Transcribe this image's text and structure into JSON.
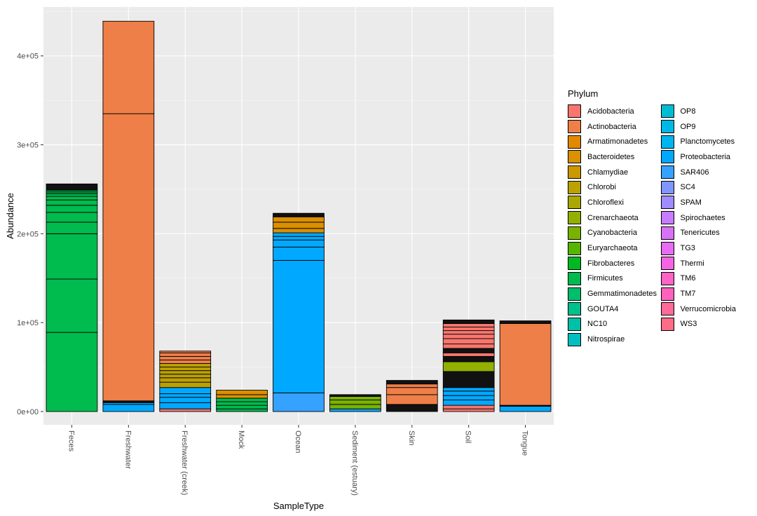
{
  "chart_data": {
    "type": "bar",
    "stacked": true,
    "title": "",
    "xlabel": "SampleType",
    "ylabel": "Abundance",
    "ylim": [
      -15000,
      455000
    ],
    "y_ticks": [
      0,
      100000,
      200000,
      300000,
      400000
    ],
    "y_tick_labels": [
      "0e+00",
      "1e+05",
      "2e+05",
      "3e+05",
      "4e+05"
    ],
    "categories": [
      "Feces",
      "Freshwater",
      "Freshwater (creek)",
      "Mock",
      "Ocean",
      "Sediment (estuary)",
      "Skin",
      "Soil",
      "Tongue"
    ],
    "legend_title": "Phylum",
    "legend_position": "right",
    "phyla": [
      {
        "name": "Acidobacteria",
        "color": "#F8766D"
      },
      {
        "name": "Actinobacteria",
        "color": "#EF7F48"
      },
      {
        "name": "Armatimonadetes",
        "color": "#E38900"
      },
      {
        "name": "Bacteroidetes",
        "color": "#DA9000"
      },
      {
        "name": "Chlamydiae",
        "color": "#CC9800"
      },
      {
        "name": "Chlorobi",
        "color": "#BCA000"
      },
      {
        "name": "Chloroflexi",
        "color": "#AAA800"
      },
      {
        "name": "Crenarchaeota",
        "color": "#93AF00"
      },
      {
        "name": "Cyanobacteria",
        "color": "#7AB200"
      },
      {
        "name": "Euryarchaeota",
        "color": "#56B500"
      },
      {
        "name": "Fibrobacteres",
        "color": "#00B81F"
      },
      {
        "name": "Firmicutes",
        "color": "#00BB4E"
      },
      {
        "name": "Gemmatimonadetes",
        "color": "#00BE6C"
      },
      {
        "name": "GOUTA4",
        "color": "#00C08B"
      },
      {
        "name": "NC10",
        "color": "#00C0A7"
      },
      {
        "name": "Nitrospirae",
        "color": "#00BFC0"
      },
      {
        "name": "OP8",
        "color": "#00BCD3"
      },
      {
        "name": "OP9",
        "color": "#00B8E5"
      },
      {
        "name": "Planctomycetes",
        "color": "#00B4F0"
      },
      {
        "name": "Proteobacteria",
        "color": "#00A9FF"
      },
      {
        "name": "SAR406",
        "color": "#35A2FF"
      },
      {
        "name": "SC4",
        "color": "#7F96FF"
      },
      {
        "name": "SPAM",
        "color": "#9F8CFF"
      },
      {
        "name": "Spirochaetes",
        "color": "#C77CFF"
      },
      {
        "name": "Tenericutes",
        "color": "#D872F5"
      },
      {
        "name": "TG3",
        "color": "#E76BF3"
      },
      {
        "name": "Thermi",
        "color": "#F564E3"
      },
      {
        "name": "TM6",
        "color": "#FF63C6"
      },
      {
        "name": "TM7",
        "color": "#FF62BC"
      },
      {
        "name": "Verrucomicrobia",
        "color": "#FF6A98"
      },
      {
        "name": "WS3",
        "color": "#FF6C86"
      }
    ],
    "series": [
      {
        "category": "Feces",
        "total": 256000,
        "segments": [
          {
            "phylum": "Firmicutes",
            "boundaries": [
              0,
              89000,
              149000,
              200000,
              213000,
              224000,
              232000,
              238000,
              242000,
              245000,
              247000,
              249000
            ]
          },
          {
            "phylum": "Other (dark)",
            "boundaries": [
              249000,
              256000
            ]
          }
        ]
      },
      {
        "category": "Freshwater",
        "total": 439000,
        "segments": [
          {
            "phylum": "Proteobacteria",
            "boundaries": [
              0,
              8000,
              10000
            ]
          },
          {
            "phylum": "Other (dark)",
            "boundaries": [
              10000,
              12000
            ]
          },
          {
            "phylum": "Actinobacteria",
            "boundaries": [
              12000,
              335000,
              439000
            ]
          }
        ]
      },
      {
        "category": "Freshwater (creek)",
        "total": 68000,
        "segments": [
          {
            "phylum": "Acidobacteria",
            "boundaries": [
              0,
              3000
            ]
          },
          {
            "phylum": "Proteobacteria",
            "boundaries": [
              3000,
              10000,
              16000,
              20000,
              27000
            ]
          },
          {
            "phylum": "Chlorobi",
            "boundaries": [
              27000,
              33000,
              38000,
              42000,
              46000,
              50000,
              54000
            ]
          },
          {
            "phylum": "Actinobacteria",
            "boundaries": [
              54000,
              58000,
              62000,
              66000,
              68000
            ]
          }
        ]
      },
      {
        "category": "Mock",
        "total": 24000,
        "segments": [
          {
            "phylum": "Firmicutes",
            "boundaries": [
              0,
              3000,
              7000,
              11000,
              15000
            ]
          },
          {
            "phylum": "Bacteroidetes",
            "boundaries": [
              15000,
              19000,
              24000
            ]
          }
        ]
      },
      {
        "category": "Ocean",
        "total": 223000,
        "segments": [
          {
            "phylum": "SAR406",
            "boundaries": [
              0,
              21000
            ]
          },
          {
            "phylum": "Proteobacteria",
            "boundaries": [
              21000,
              170000,
              185000,
              193000,
              197000,
              201000
            ]
          },
          {
            "phylum": "Bacteroidetes",
            "boundaries": [
              201000,
              206000,
              213000,
              219000
            ]
          },
          {
            "phylum": "Other (dark)",
            "boundaries": [
              219000,
              223000
            ]
          }
        ]
      },
      {
        "category": "Sediment (estuary)",
        "total": 19000,
        "segments": [
          {
            "phylum": "Proteobacteria",
            "boundaries": [
              0,
              3000
            ]
          },
          {
            "phylum": "Cyanobacteria",
            "boundaries": [
              3000,
              8000,
              13000,
              17000
            ]
          },
          {
            "phylum": "Other (dark)",
            "boundaries": [
              17000,
              19000
            ]
          }
        ]
      },
      {
        "category": "Skin",
        "total": 35000,
        "segments": [
          {
            "phylum": "Other (dark)",
            "boundaries": [
              0,
              8000
            ]
          },
          {
            "phylum": "Actinobacteria",
            "boundaries": [
              8000,
              19000,
              27000,
              31000
            ]
          },
          {
            "phylum": "Other (dark)",
            "boundaries": [
              31000,
              35000
            ]
          }
        ]
      },
      {
        "category": "Soil",
        "total": 103000,
        "segments": [
          {
            "phylum": "Acidobacteria",
            "boundaries": [
              0,
              3000,
              7000
            ]
          },
          {
            "phylum": "Proteobacteria",
            "boundaries": [
              7000,
              13000,
              18000,
              23000,
              27000
            ]
          },
          {
            "phylum": "Other (dark)",
            "boundaries": [
              27000,
              45000
            ]
          },
          {
            "phylum": "Crenarchaeota",
            "boundaries": [
              45000,
              56000
            ]
          },
          {
            "phylum": "Other (dark)",
            "boundaries": [
              56000,
              62000
            ]
          },
          {
            "phylum": "Acidobacteria",
            "boundaries": [
              62000,
              66000
            ]
          },
          {
            "phylum": "Other (dark)",
            "boundaries": [
              66000,
              71000
            ]
          },
          {
            "phylum": "Acidobacteria",
            "boundaries": [
              71000,
              76000,
              82000,
              87000,
              91000,
              95000,
              99000
            ]
          },
          {
            "phylum": "Other (dark)",
            "boundaries": [
              99000,
              103000
            ]
          }
        ]
      },
      {
        "category": "Tongue",
        "total": 102000,
        "segments": [
          {
            "phylum": "Proteobacteria",
            "boundaries": [
              0,
              6000
            ]
          },
          {
            "phylum": "Other (dark)",
            "boundaries": [
              6000,
              7000
            ]
          },
          {
            "phylum": "Actinobacteria",
            "boundaries": [
              7000,
              99000
            ]
          },
          {
            "phylum": "Other (dark)",
            "boundaries": [
              99000,
              102000
            ]
          }
        ]
      }
    ]
  },
  "colors": {
    "panel_background": "#EBEBEB",
    "grid_major": "#FFFFFF",
    "other_dark": "#111111"
  }
}
